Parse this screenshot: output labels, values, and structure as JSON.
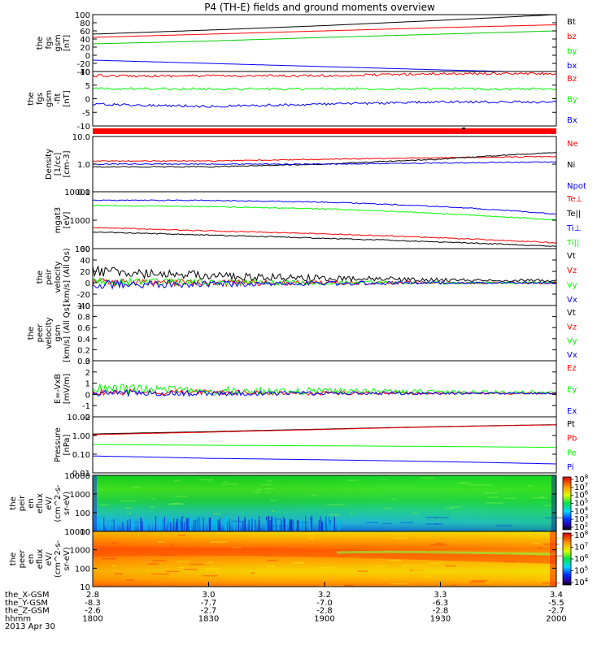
{
  "title": "P4 (TH-E) fields and ground moments overview",
  "colors": {
    "black": "#000000",
    "red": "#ff0000",
    "green": "#00cc00",
    "blue": "#0000ff",
    "lime": "#00ff00"
  },
  "panels": [
    {
      "id": "fgs_gsm",
      "ylabel": [
        "the",
        "fgs",
        "gsm",
        "[nT]"
      ],
      "ticks": [
        "100",
        "80",
        "60",
        "40",
        "20",
        "0",
        "-20",
        "-40"
      ],
      "legend": [
        "Bt",
        "bz",
        "by",
        "bx"
      ],
      "legend_colors": [
        "black",
        "red",
        "green",
        "blue"
      ]
    },
    {
      "id": "fgs_gsm_fluct",
      "ylabel": [
        "the",
        "fgs",
        "gsm",
        "-fit",
        "[nT]"
      ],
      "ticks": [
        "10",
        "5",
        "0",
        "-5",
        "-10"
      ],
      "legend": [
        "Bz",
        "By",
        "Bx"
      ],
      "legend_colors": [
        "red",
        "green",
        "blue"
      ]
    },
    {
      "id": "density",
      "ylabel": [
        "Density",
        "[1/cc]",
        "[cm-3]"
      ],
      "ticks": [
        "10.0",
        "1.0",
        "0.1"
      ],
      "legend": [
        "Ne",
        "Ni",
        "Npot"
      ],
      "legend_colors": [
        "red",
        "black",
        "blue"
      ]
    },
    {
      "id": "temperature",
      "ylabel": [
        "mgat3",
        "[eV]"
      ],
      "ticks": [
        "10000",
        "1000",
        "100"
      ],
      "legend": [
        "Te⊥",
        "Te||",
        "Ti⊥",
        "Ti||"
      ],
      "legend_colors": [
        "red",
        "black",
        "blue",
        "green"
      ]
    },
    {
      "id": "peir_velocity",
      "ylabel": [
        "the",
        "peir",
        "velocity",
        "[km/s] (All Qs)"
      ],
      "ticks": [
        "60",
        "40",
        "20",
        "0",
        "-20",
        "-40"
      ],
      "legend": [
        "Vt",
        "Vz",
        "Vy",
        "Vx"
      ],
      "legend_colors": [
        "black",
        "red",
        "green",
        "blue"
      ]
    },
    {
      "id": "peer_velocity",
      "ylabel": [
        "the",
        "peer",
        "velocity",
        "gsm",
        "[km/s] (All Qs)"
      ],
      "ticks": [
        "1.0",
        "0.8",
        "0.6",
        "0.4",
        "0.2",
        "0.0"
      ],
      "legend": [
        "Vt",
        "Vz",
        "Vy",
        "Vx"
      ],
      "legend_colors": [
        "black",
        "red",
        "green",
        "blue"
      ]
    },
    {
      "id": "efield",
      "ylabel": [
        "E=-VxB",
        "[mV/m]"
      ],
      "ticks": [
        "3",
        "2",
        "1",
        "0",
        "-1",
        "-2"
      ],
      "legend": [
        "Ez",
        "Ey",
        "Ex"
      ],
      "legend_colors": [
        "red",
        "green",
        "blue"
      ]
    },
    {
      "id": "pressure",
      "ylabel": [
        "Pressure",
        "[nPa]"
      ],
      "ticks": [
        "10.00",
        "1.00",
        "0.10",
        "0.01"
      ],
      "legend": [
        "Pt",
        "Pb",
        "Pe",
        "Pi"
      ],
      "legend_colors": [
        "black",
        "red",
        "green",
        "blue"
      ]
    },
    {
      "id": "peir_spec",
      "ylabel": [
        "the",
        "peir",
        "en",
        "eflux",
        "eV/",
        "(cm^2-s-",
        "sr-eV)"
      ],
      "ticks": [
        "10000",
        "1000",
        "100",
        "10"
      ],
      "cbar_ticks": [
        "10^8",
        "10^7",
        "10^6",
        "10^5",
        "10^4",
        "10^3",
        "10^2"
      ]
    },
    {
      "id": "peer_spec",
      "ylabel": [
        "the",
        "peer",
        "en",
        "eflux",
        "eV/",
        "(cm^2-s-",
        "sr-eV)"
      ],
      "ticks": [
        "10000",
        "1000",
        "100",
        "10"
      ],
      "cbar_ticks": [
        "10^8",
        "10^7",
        "10^6",
        "10^5",
        "10^4"
      ]
    }
  ],
  "time_axis": {
    "row_labels": [
      "the_X-GSM",
      "the_Y-GSM",
      "the_Z-GSM",
      "hhmm",
      "2013 Apr 30"
    ],
    "columns": [
      [
        "2.8",
        "-8.3",
        "-2.6",
        "1800"
      ],
      [
        "3.0",
        "-7.7",
        "-2.7",
        "1830"
      ],
      [
        "3.2",
        "-7.0",
        "-2.8",
        "1900"
      ],
      [
        "3.3",
        "-6.3",
        "-2.8",
        "1930"
      ],
      [
        "3.4",
        "-5.5",
        "-2.7",
        "2000"
      ]
    ]
  },
  "chart_data": [
    {
      "type": "line",
      "title": "P4 (TH-E) fields and ground moments overview",
      "x": [
        "1800",
        "1830",
        "1900",
        "1930",
        "2000"
      ],
      "ylim": [
        -40,
        100
      ],
      "series": [
        {
          "name": "Bt",
          "values": [
            52,
            62,
            73,
            86,
            100
          ]
        },
        {
          "name": "bz",
          "values": [
            44,
            52,
            60,
            68,
            75
          ]
        },
        {
          "name": "by",
          "values": [
            28,
            35,
            44,
            52,
            60
          ]
        },
        {
          "name": "bx",
          "values": [
            -12,
            -20,
            -28,
            -36,
            -43
          ]
        }
      ]
    },
    {
      "type": "line",
      "x": [
        "1800",
        "1830",
        "1900",
        "1930",
        "2000"
      ],
      "ylim": [
        -15,
        10
      ],
      "series": [
        {
          "name": "Bz",
          "values": [
            8,
            8,
            8,
            9,
            9
          ]
        },
        {
          "name": "By",
          "values": [
            2,
            2,
            2,
            2,
            2
          ]
        },
        {
          "name": "Bx",
          "values": [
            -5,
            -6,
            -5,
            -4,
            -4
          ]
        }
      ]
    },
    {
      "type": "line",
      "scale": "log",
      "x": [
        "1800",
        "1830",
        "1900",
        "1930",
        "2000"
      ],
      "ylim": [
        0.1,
        10
      ],
      "series": [
        {
          "name": "Ne",
          "values": [
            1.3,
            1.3,
            1.5,
            1.7,
            1.9
          ]
        },
        {
          "name": "Ni",
          "values": [
            0.8,
            0.8,
            1.0,
            1.5,
            2.6
          ]
        },
        {
          "name": "Npot",
          "values": [
            1.0,
            1.0,
            1.0,
            1.1,
            1.2
          ]
        }
      ]
    },
    {
      "type": "line",
      "scale": "log",
      "x": [
        "1800",
        "1830",
        "1900",
        "1930",
        "2000"
      ],
      "ylim": [
        100,
        10000
      ],
      "series": [
        {
          "name": "Te⊥",
          "values": [
            550,
            420,
            330,
            240,
            160
          ]
        },
        {
          "name": "Te||",
          "values": [
            380,
            300,
            230,
            170,
            120
          ]
        },
        {
          "name": "Ti⊥",
          "values": [
            5000,
            5000,
            4300,
            3000,
            1600
          ]
        },
        {
          "name": "Ti||",
          "values": [
            3300,
            3000,
            2500,
            1700,
            1000
          ]
        }
      ]
    },
    {
      "type": "line",
      "x": [
        "1800",
        "1830",
        "1900",
        "1930",
        "2000"
      ],
      "ylim": [
        -40,
        60
      ],
      "series": [
        {
          "name": "Vt",
          "values": [
            20,
            12,
            8,
            5,
            4
          ]
        },
        {
          "name": "Vz",
          "values": [
            0,
            0,
            0,
            0,
            0
          ]
        },
        {
          "name": "Vy",
          "values": [
            2,
            1,
            0,
            0,
            0
          ]
        },
        {
          "name": "Vx",
          "values": [
            -4,
            -2,
            -1,
            0,
            0
          ]
        }
      ]
    },
    {
      "type": "line",
      "x": [
        "1800",
        "1830",
        "1900",
        "1930",
        "2000"
      ],
      "ylim": [
        0,
        1
      ],
      "series": []
    },
    {
      "type": "line",
      "x": [
        "1800",
        "1830",
        "1900",
        "1930",
        "2000"
      ],
      "ylim": [
        -2,
        3
      ],
      "series": [
        {
          "name": "Ez",
          "values": [
            0.2,
            0.2,
            0.1,
            0.1,
            0.1
          ]
        },
        {
          "name": "Ey",
          "values": [
            0.5,
            0.3,
            0.3,
            0.2,
            0.2
          ]
        },
        {
          "name": "Ex",
          "values": [
            0.1,
            0.1,
            0.1,
            0.1,
            0.1
          ]
        }
      ]
    },
    {
      "type": "line",
      "scale": "log",
      "x": [
        "1800",
        "1830",
        "1900",
        "1930",
        "2000"
      ],
      "ylim": [
        0.01,
        10
      ],
      "series": [
        {
          "name": "Pt",
          "values": [
            1.2,
            1.6,
            2.2,
            3.0,
            3.8
          ]
        },
        {
          "name": "Pb",
          "values": [
            1.1,
            1.5,
            2.1,
            2.9,
            3.7
          ]
        },
        {
          "name": "Pe",
          "values": [
            0.33,
            0.3,
            0.28,
            0.26,
            0.23
          ]
        },
        {
          "name": "Pi",
          "values": [
            0.08,
            0.06,
            0.05,
            0.04,
            0.03
          ]
        }
      ]
    },
    {
      "type": "heatmap",
      "x": [
        "1800",
        "1830",
        "1900",
        "1930",
        "2000"
      ],
      "yscale": "log",
      "ylim": [
        10,
        10000
      ],
      "colorbar": [
        "10^2",
        "10^8"
      ]
    },
    {
      "type": "heatmap",
      "x": [
        "1800",
        "1830",
        "1900",
        "1930",
        "2000"
      ],
      "yscale": "log",
      "ylim": [
        10,
        10000
      ],
      "colorbar": [
        "10^4",
        "10^8"
      ]
    }
  ]
}
